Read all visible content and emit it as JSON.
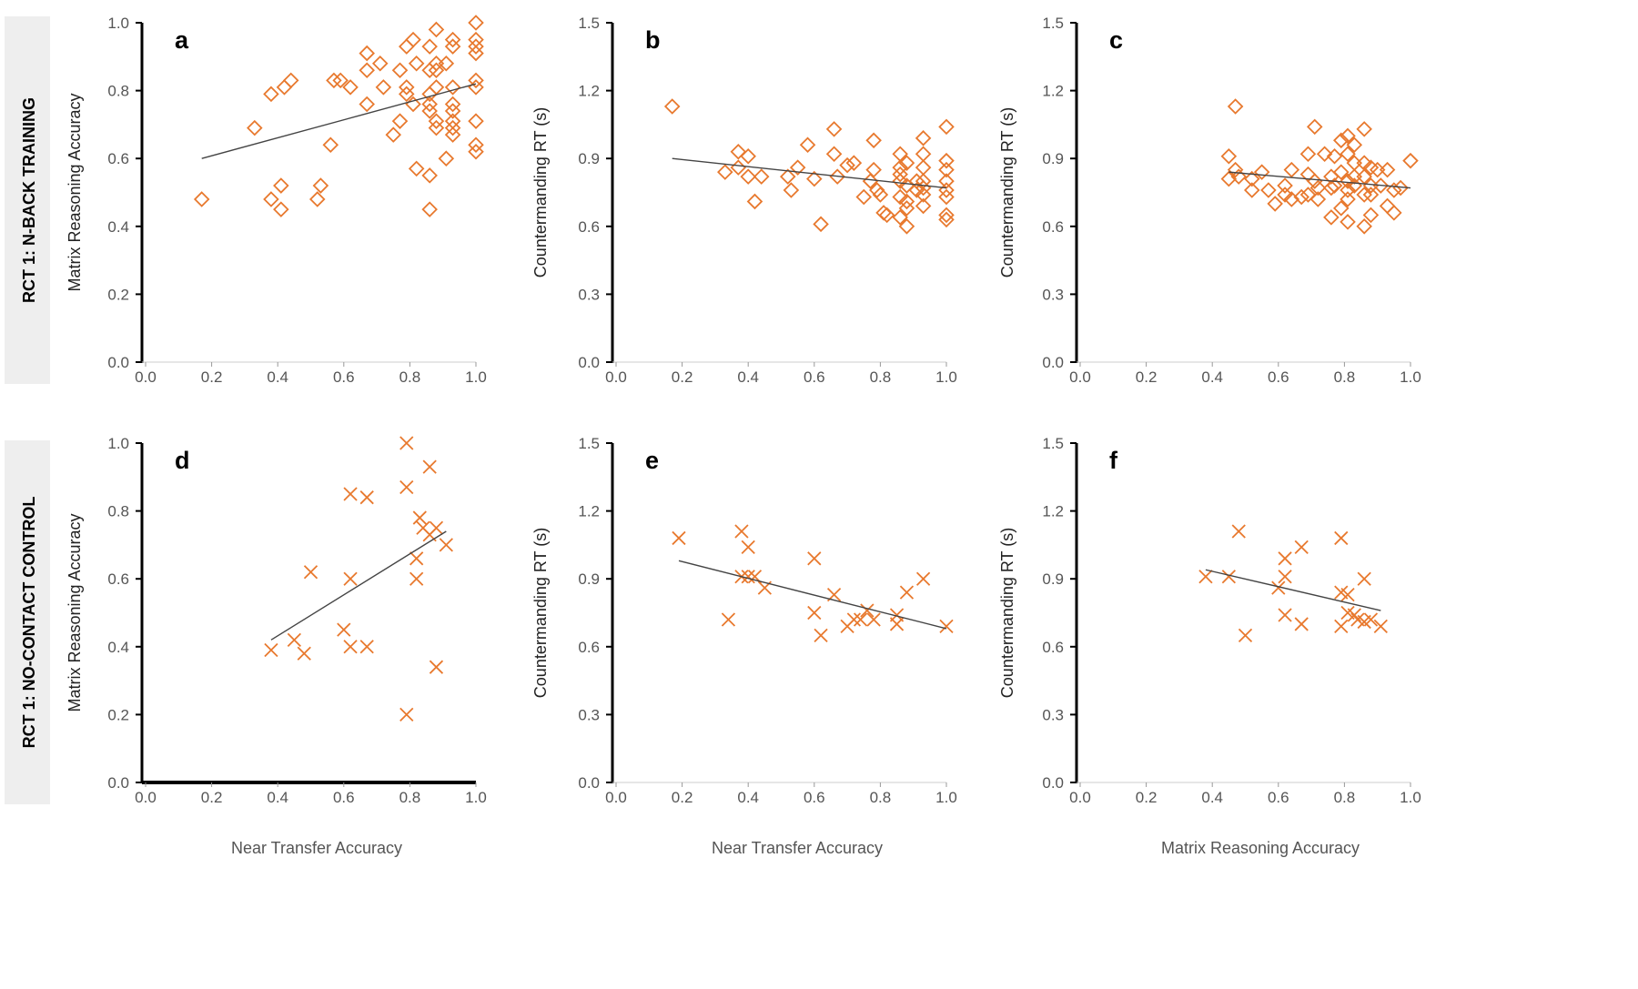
{
  "row_labels": [
    "RCT 1: N-BACK TRAINING",
    "RCT 1: NO-CONTACT CONTROL"
  ],
  "bottom_labels": [
    "Near Transfer Accuracy",
    "Near Transfer Accuracy",
    "Matrix Reasoning Accuracy"
  ],
  "colors": {
    "marker": "#E8792E",
    "trend": "#444444",
    "row_band": "#EEEEEE"
  },
  "chart_data": [
    {
      "type": "scatter",
      "letter": "a",
      "marker": "diamond",
      "xlabel": "Near Transfer Accuracy",
      "ylabel": "Matrix Reasoning Accuracy",
      "xlim": [
        0,
        1
      ],
      "ylim": [
        0,
        1
      ],
      "xticks": [
        "0.0",
        "0.2",
        "0.4",
        "0.6",
        "0.8",
        "1.0"
      ],
      "yticks": [
        "0.0",
        "0.2",
        "0.4",
        "0.6",
        "0.8",
        "1.0"
      ],
      "points": [
        [
          0.17,
          0.48
        ],
        [
          0.33,
          0.69
        ],
        [
          0.38,
          0.48
        ],
        [
          0.38,
          0.79
        ],
        [
          0.41,
          0.45
        ],
        [
          0.41,
          0.52
        ],
        [
          0.42,
          0.81
        ],
        [
          0.44,
          0.83
        ],
        [
          0.52,
          0.48
        ],
        [
          0.53,
          0.52
        ],
        [
          0.56,
          0.64
        ],
        [
          0.57,
          0.83
        ],
        [
          0.59,
          0.83
        ],
        [
          0.62,
          0.81
        ],
        [
          0.67,
          0.76
        ],
        [
          0.67,
          0.86
        ],
        [
          0.67,
          0.91
        ],
        [
          0.71,
          0.88
        ],
        [
          0.72,
          0.81
        ],
        [
          0.75,
          0.67
        ],
        [
          0.77,
          0.86
        ],
        [
          0.77,
          0.71
        ],
        [
          0.79,
          0.79
        ],
        [
          0.79,
          0.81
        ],
        [
          0.79,
          0.93
        ],
        [
          0.81,
          0.95
        ],
        [
          0.81,
          0.76
        ],
        [
          0.82,
          0.88
        ],
        [
          0.82,
          0.57
        ],
        [
          0.86,
          0.93
        ],
        [
          0.86,
          0.86
        ],
        [
          0.86,
          0.79
        ],
        [
          0.86,
          0.76
        ],
        [
          0.86,
          0.74
        ],
        [
          0.86,
          0.55
        ],
        [
          0.86,
          0.45
        ],
        [
          0.88,
          0.98
        ],
        [
          0.88,
          0.88
        ],
        [
          0.88,
          0.86
        ],
        [
          0.88,
          0.81
        ],
        [
          0.88,
          0.71
        ],
        [
          0.88,
          0.69
        ],
        [
          0.91,
          0.88
        ],
        [
          0.91,
          0.6
        ],
        [
          0.93,
          0.95
        ],
        [
          0.93,
          0.93
        ],
        [
          0.93,
          0.81
        ],
        [
          0.93,
          0.76
        ],
        [
          0.93,
          0.74
        ],
        [
          0.93,
          0.71
        ],
        [
          0.93,
          0.69
        ],
        [
          0.93,
          0.67
        ],
        [
          1.0,
          1.0
        ],
        [
          1.0,
          0.95
        ],
        [
          1.0,
          0.93
        ],
        [
          1.0,
          0.91
        ],
        [
          1.0,
          0.83
        ],
        [
          1.0,
          0.81
        ],
        [
          1.0,
          0.71
        ],
        [
          1.0,
          0.64
        ],
        [
          1.0,
          0.62
        ]
      ],
      "trend": [
        [
          0.17,
          0.6
        ],
        [
          1.0,
          0.82
        ]
      ]
    },
    {
      "type": "scatter",
      "letter": "b",
      "marker": "diamond",
      "xlabel": "Near Transfer Accuracy",
      "ylabel": "Countermanding RT (s)",
      "xlim": [
        0,
        1
      ],
      "ylim": [
        0,
        1.5
      ],
      "xticks": [
        "0.0",
        "0.2",
        "0.4",
        "0.6",
        "0.8",
        "1.0"
      ],
      "yticks": [
        "0.0",
        "0.3",
        "0.6",
        "0.9",
        "1.2",
        "1.5"
      ],
      "points": [
        [
          0.17,
          1.13
        ],
        [
          0.33,
          0.84
        ],
        [
          0.37,
          0.93
        ],
        [
          0.37,
          0.86
        ],
        [
          0.4,
          0.91
        ],
        [
          0.4,
          0.82
        ],
        [
          0.42,
          0.71
        ],
        [
          0.44,
          0.82
        ],
        [
          0.52,
          0.82
        ],
        [
          0.53,
          0.76
        ],
        [
          0.55,
          0.86
        ],
        [
          0.58,
          0.96
        ],
        [
          0.6,
          0.81
        ],
        [
          0.62,
          0.61
        ],
        [
          0.66,
          1.03
        ],
        [
          0.66,
          0.92
        ],
        [
          0.67,
          0.82
        ],
        [
          0.7,
          0.87
        ],
        [
          0.72,
          0.88
        ],
        [
          0.75,
          0.73
        ],
        [
          0.77,
          0.8
        ],
        [
          0.78,
          0.98
        ],
        [
          0.78,
          0.85
        ],
        [
          0.79,
          0.76
        ],
        [
          0.8,
          0.74
        ],
        [
          0.81,
          0.66
        ],
        [
          0.82,
          0.65
        ],
        [
          0.86,
          0.92
        ],
        [
          0.86,
          0.86
        ],
        [
          0.86,
          0.83
        ],
        [
          0.86,
          0.8
        ],
        [
          0.86,
          0.73
        ],
        [
          0.86,
          0.64
        ],
        [
          0.88,
          0.88
        ],
        [
          0.88,
          0.78
        ],
        [
          0.88,
          0.71
        ],
        [
          0.88,
          0.68
        ],
        [
          0.88,
          0.6
        ],
        [
          0.91,
          0.8
        ],
        [
          0.91,
          0.76
        ],
        [
          0.93,
          0.99
        ],
        [
          0.93,
          0.92
        ],
        [
          0.93,
          0.86
        ],
        [
          0.93,
          0.8
        ],
        [
          0.93,
          0.77
        ],
        [
          0.93,
          0.74
        ],
        [
          0.93,
          0.69
        ],
        [
          1.0,
          1.04
        ],
        [
          1.0,
          0.89
        ],
        [
          1.0,
          0.85
        ],
        [
          1.0,
          0.8
        ],
        [
          1.0,
          0.76
        ],
        [
          1.0,
          0.73
        ],
        [
          1.0,
          0.65
        ],
        [
          1.0,
          0.63
        ]
      ],
      "trend": [
        [
          0.17,
          0.9
        ],
        [
          1.0,
          0.77
        ]
      ]
    },
    {
      "type": "scatter",
      "letter": "c",
      "marker": "diamond",
      "xlabel": "Matrix Reasoning Accuracy",
      "ylabel": "Countermanding RT (s)",
      "xlim": [
        0,
        1
      ],
      "ylim": [
        0,
        1.5
      ],
      "xticks": [
        "0.0",
        "0.2",
        "0.4",
        "0.6",
        "0.8",
        "1.0"
      ],
      "yticks": [
        "0.0",
        "0.3",
        "0.6",
        "0.9",
        "1.2",
        "1.5"
      ],
      "points": [
        [
          0.45,
          0.91
        ],
        [
          0.45,
          0.81
        ],
        [
          0.47,
          1.13
        ],
        [
          0.47,
          0.85
        ],
        [
          0.48,
          0.82
        ],
        [
          0.52,
          0.76
        ],
        [
          0.52,
          0.81
        ],
        [
          0.55,
          0.84
        ],
        [
          0.57,
          0.76
        ],
        [
          0.59,
          0.7
        ],
        [
          0.62,
          0.78
        ],
        [
          0.62,
          0.74
        ],
        [
          0.64,
          0.85
        ],
        [
          0.64,
          0.72
        ],
        [
          0.67,
          0.73
        ],
        [
          0.69,
          0.74
        ],
        [
          0.69,
          0.83
        ],
        [
          0.69,
          0.92
        ],
        [
          0.71,
          1.04
        ],
        [
          0.71,
          0.8
        ],
        [
          0.72,
          0.77
        ],
        [
          0.72,
          0.72
        ],
        [
          0.74,
          0.92
        ],
        [
          0.76,
          0.64
        ],
        [
          0.76,
          0.77
        ],
        [
          0.76,
          0.82
        ],
        [
          0.77,
          0.91
        ],
        [
          0.77,
          0.78
        ],
        [
          0.79,
          0.98
        ],
        [
          0.79,
          0.84
        ],
        [
          0.79,
          0.68
        ],
        [
          0.81,
          1.0
        ],
        [
          0.81,
          0.92
        ],
        [
          0.81,
          0.8
        ],
        [
          0.81,
          0.76
        ],
        [
          0.81,
          0.72
        ],
        [
          0.81,
          0.62
        ],
        [
          0.83,
          0.96
        ],
        [
          0.83,
          0.88
        ],
        [
          0.83,
          0.82
        ],
        [
          0.83,
          0.78
        ],
        [
          0.86,
          1.03
        ],
        [
          0.86,
          0.88
        ],
        [
          0.86,
          0.82
        ],
        [
          0.86,
          0.74
        ],
        [
          0.86,
          0.6
        ],
        [
          0.88,
          0.86
        ],
        [
          0.88,
          0.78
        ],
        [
          0.88,
          0.74
        ],
        [
          0.88,
          0.65
        ],
        [
          0.9,
          0.85
        ],
        [
          0.91,
          0.78
        ],
        [
          0.93,
          0.85
        ],
        [
          0.93,
          0.69
        ],
        [
          0.95,
          0.76
        ],
        [
          0.95,
          0.66
        ],
        [
          0.97,
          0.77
        ],
        [
          1.0,
          0.89
        ]
      ],
      "trend": [
        [
          0.45,
          0.84
        ],
        [
          1.0,
          0.77
        ]
      ]
    },
    {
      "type": "scatter",
      "letter": "d",
      "marker": "cross",
      "xlabel": "Near Transfer Accuracy",
      "ylabel": "Matrix Reasoning Accuracy",
      "xlim": [
        0,
        1
      ],
      "ylim": [
        0,
        1
      ],
      "xticks": [
        "0.0",
        "0.2",
        "0.4",
        "0.6",
        "0.8",
        "1.0"
      ],
      "yticks": [
        "0.0",
        "0.2",
        "0.4",
        "0.6",
        "0.8",
        "1.0"
      ],
      "points": [
        [
          0.79,
          1.0
        ],
        [
          0.86,
          0.93
        ],
        [
          0.79,
          0.87
        ],
        [
          0.62,
          0.85
        ],
        [
          0.67,
          0.84
        ],
        [
          0.83,
          0.78
        ],
        [
          0.84,
          0.75
        ],
        [
          0.86,
          0.73
        ],
        [
          0.88,
          0.75
        ],
        [
          0.82,
          0.66
        ],
        [
          0.91,
          0.7
        ],
        [
          0.82,
          0.6
        ],
        [
          0.5,
          0.62
        ],
        [
          0.62,
          0.6
        ],
        [
          0.6,
          0.45
        ],
        [
          0.45,
          0.42
        ],
        [
          0.38,
          0.39
        ],
        [
          0.48,
          0.38
        ],
        [
          0.62,
          0.4
        ],
        [
          0.67,
          0.4
        ],
        [
          0.88,
          0.34
        ],
        [
          0.79,
          0.2
        ]
      ],
      "trend": [
        [
          0.38,
          0.42
        ],
        [
          0.91,
          0.74
        ]
      ]
    },
    {
      "type": "scatter",
      "letter": "e",
      "marker": "cross",
      "xlabel": "Near Transfer Accuracy",
      "ylabel": "Countermanding RT (s)",
      "xlim": [
        0,
        1
      ],
      "ylim": [
        0,
        1.5
      ],
      "xticks": [
        "0.0",
        "0.2",
        "0.4",
        "0.6",
        "0.8",
        "1.0"
      ],
      "yticks": [
        "0.0",
        "0.3",
        "0.6",
        "0.9",
        "1.2",
        "1.5"
      ],
      "points": [
        [
          0.19,
          1.08
        ],
        [
          0.38,
          1.11
        ],
        [
          0.4,
          1.04
        ],
        [
          0.38,
          0.91
        ],
        [
          0.4,
          0.91
        ],
        [
          0.42,
          0.91
        ],
        [
          0.45,
          0.86
        ],
        [
          0.34,
          0.72
        ],
        [
          0.6,
          0.99
        ],
        [
          0.6,
          0.75
        ],
        [
          0.62,
          0.65
        ],
        [
          0.66,
          0.83
        ],
        [
          0.7,
          0.69
        ],
        [
          0.72,
          0.72
        ],
        [
          0.74,
          0.72
        ],
        [
          0.76,
          0.76
        ],
        [
          0.78,
          0.72
        ],
        [
          0.85,
          0.7
        ],
        [
          0.85,
          0.74
        ],
        [
          0.88,
          0.84
        ],
        [
          0.93,
          0.9
        ],
        [
          1.0,
          0.69
        ]
      ],
      "trend": [
        [
          0.19,
          0.98
        ],
        [
          1.0,
          0.68
        ]
      ]
    },
    {
      "type": "scatter",
      "letter": "f",
      "marker": "cross",
      "xlabel": "Matrix Reasoning Accuracy",
      "ylabel": "Countermanding RT (s)",
      "xlim": [
        0,
        1
      ],
      "ylim": [
        0,
        1.5
      ],
      "xticks": [
        "0.0",
        "0.2",
        "0.4",
        "0.6",
        "0.8",
        "1.0"
      ],
      "yticks": [
        "0.0",
        "0.3",
        "0.6",
        "0.9",
        "1.2",
        "1.5"
      ],
      "points": [
        [
          0.38,
          0.91
        ],
        [
          0.45,
          0.91
        ],
        [
          0.48,
          1.11
        ],
        [
          0.5,
          0.65
        ],
        [
          0.6,
          0.86
        ],
        [
          0.62,
          0.99
        ],
        [
          0.62,
          0.91
        ],
        [
          0.62,
          0.74
        ],
        [
          0.67,
          1.04
        ],
        [
          0.67,
          0.7
        ],
        [
          0.79,
          1.08
        ],
        [
          0.79,
          0.84
        ],
        [
          0.79,
          0.69
        ],
        [
          0.81,
          0.83
        ],
        [
          0.81,
          0.75
        ],
        [
          0.83,
          0.74
        ],
        [
          0.86,
          0.9
        ],
        [
          0.84,
          0.72
        ],
        [
          0.86,
          0.71
        ],
        [
          0.88,
          0.72
        ],
        [
          0.91,
          0.69
        ]
      ],
      "trend": [
        [
          0.38,
          0.94
        ],
        [
          0.91,
          0.76
        ]
      ]
    }
  ]
}
